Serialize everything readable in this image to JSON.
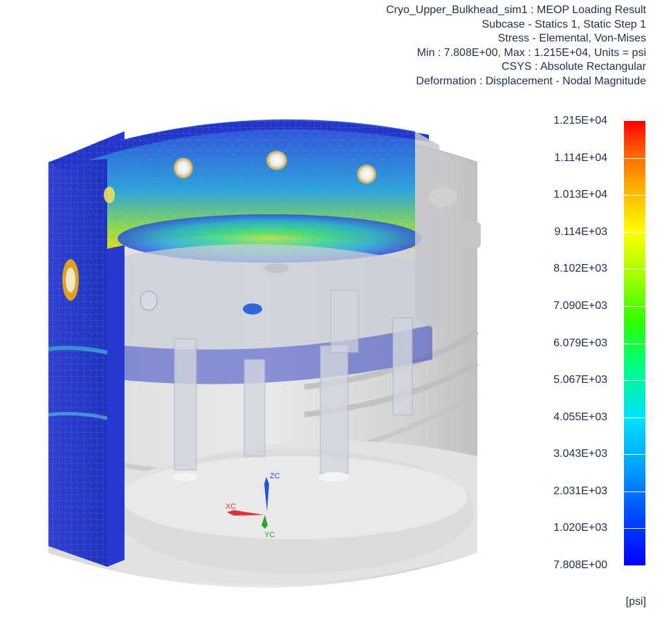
{
  "header": {
    "title_line": "Cryo_Upper_Bulkhead_sim1 : MEOP Loading Result",
    "subcase_line": "Subcase - Statics 1, Static Step 1",
    "result_line": "Stress - Elemental, Von-Mises",
    "range_line": "Min : 7.808E+00, Max : 1.215E+04, Units = psi",
    "csys_line": "CSYS : Absolute Rectangular",
    "deformation_line": "Deformation : Displacement - Nodal Magnitude"
  },
  "legend": {
    "labels": [
      "1.215E+04",
      "1.114E+04",
      "1.013E+04",
      "9.114E+03",
      "8.102E+03",
      "7.090E+03",
      "6.079E+03",
      "5.067E+03",
      "4.055E+03",
      "3.043E+03",
      "2.031E+03",
      "1.020E+03",
      "7.808E+00"
    ],
    "units": "[psi]"
  },
  "triad": {
    "z_label": "ZC",
    "x_label": "XC",
    "y_label": "YC"
  },
  "colors": {
    "z_axis": "#1f55d8",
    "x_axis": "#e0303a",
    "y_axis": "#2aa52a",
    "text": "#1f2f4a"
  }
}
